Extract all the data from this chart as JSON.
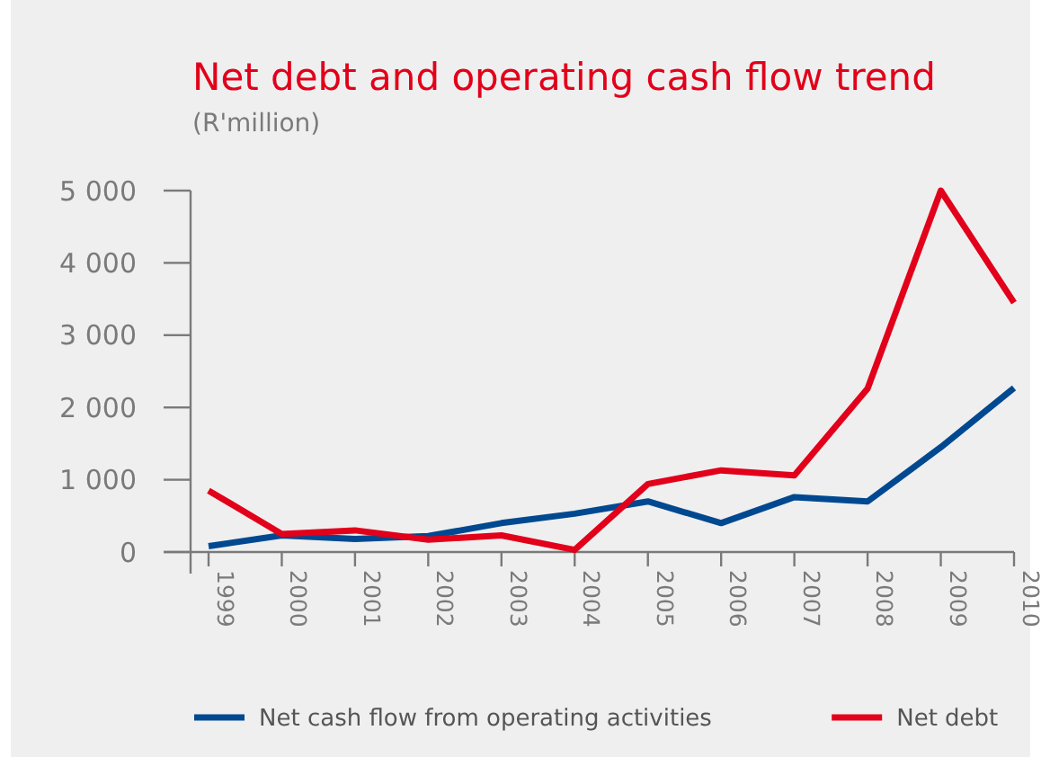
{
  "chart_data": {
    "type": "line",
    "title": "Net debt and operating cash flow trend",
    "subtitle": "(R'million)",
    "categories": [
      "1999",
      "2000",
      "2001",
      "2002",
      "2003",
      "2004",
      "2005",
      "2006",
      "2007",
      "2008",
      "2009",
      "2010"
    ],
    "series": [
      {
        "name": "Net cash flow from operating activities",
        "color": "#004990",
        "values": [
          80,
          230,
          180,
          220,
          400,
          530,
          700,
          400,
          760,
          700,
          1450,
          2270
        ]
      },
      {
        "name": "Net debt",
        "color": "#e2001a",
        "values": [
          850,
          250,
          300,
          170,
          230,
          30,
          940,
          1130,
          1060,
          2260,
          5000,
          3450
        ]
      }
    ],
    "ylim": [
      0,
      5000
    ],
    "yticks": [
      {
        "value": 0,
        "label": "0"
      },
      {
        "value": 1000,
        "label": "1 000"
      },
      {
        "value": 2000,
        "label": "2 000"
      },
      {
        "value": 3000,
        "label": "3 000"
      },
      {
        "value": 4000,
        "label": "4 000"
      },
      {
        "value": 5000,
        "label": "5 000"
      }
    ],
    "grid": false,
    "legend": "bottom",
    "line_style": "solid",
    "marker": "none"
  }
}
